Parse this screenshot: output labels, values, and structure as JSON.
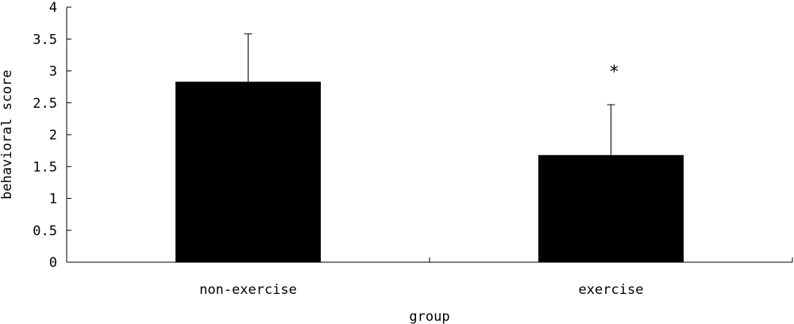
{
  "chart_data": {
    "type": "bar",
    "categories": [
      "non-exercise",
      "exercise"
    ],
    "values": [
      2.83,
      1.68
    ],
    "error_upper": [
      3.58,
      2.47
    ],
    "annotations": [
      "",
      "*"
    ],
    "xlabel": "group",
    "ylabel": "behavioral score",
    "ylim": [
      0,
      4
    ],
    "yticks": [
      "0",
      "0.5",
      "1",
      "1.5",
      "2",
      "2.5",
      "3",
      "3.5",
      "4"
    ],
    "grid": false,
    "legend": "none",
    "bar_color": "#000000"
  }
}
